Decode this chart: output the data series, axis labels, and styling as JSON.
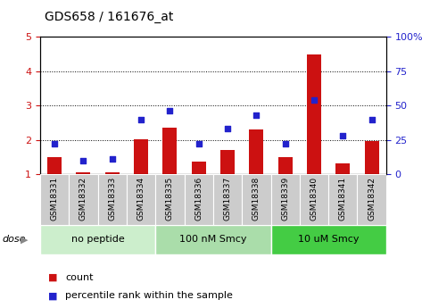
{
  "title": "GDS658 / 161676_at",
  "samples": [
    "GSM18331",
    "GSM18332",
    "GSM18333",
    "GSM18334",
    "GSM18335",
    "GSM18336",
    "GSM18337",
    "GSM18338",
    "GSM18339",
    "GSM18340",
    "GSM18341",
    "GSM18342"
  ],
  "bar_values": [
    1.5,
    1.05,
    1.05,
    2.02,
    2.35,
    1.35,
    1.7,
    2.3,
    1.5,
    4.5,
    1.3,
    1.95
  ],
  "scatter_values": [
    22,
    10,
    11,
    40,
    46,
    22,
    33,
    43,
    22,
    54,
    28,
    40
  ],
  "bar_color": "#cc1111",
  "scatter_color": "#2222cc",
  "ylim_left": [
    1,
    5
  ],
  "ylim_right": [
    0,
    100
  ],
  "yticks_left": [
    1,
    2,
    3,
    4,
    5
  ],
  "yticks_right": [
    0,
    25,
    50,
    75,
    100
  ],
  "ytick_labels_right": [
    "0",
    "25",
    "50",
    "75",
    "100%"
  ],
  "groups": [
    {
      "label": "no peptide",
      "start": 0,
      "end": 3,
      "color": "#cceecc"
    },
    {
      "label": "100 nM Smcy",
      "start": 4,
      "end": 7,
      "color": "#aaddaa"
    },
    {
      "label": "10 uM Smcy",
      "start": 8,
      "end": 11,
      "color": "#44cc44"
    }
  ],
  "dose_label": "dose",
  "legend_bar_label": "count",
  "legend_scatter_label": "percentile rank within the sample",
  "background_color": "#ffffff",
  "bar_width": 0.5,
  "scatter_size": 22,
  "tick_bg_color": "#cccccc",
  "label_fontsize": 6.5,
  "group_fontsize": 8,
  "title_fontsize": 10
}
